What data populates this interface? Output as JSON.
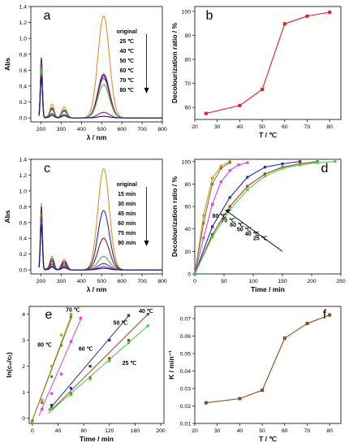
{
  "chart_data": [
    {
      "panel": "a",
      "type": "line",
      "xlabel": "λ / nm",
      "ylabel": "Abs",
      "xlim": [
        150,
        800
      ],
      "ylim": [
        -0.05,
        1.4
      ],
      "xticks": [
        200,
        300,
        400,
        500,
        600,
        700,
        800
      ],
      "yticks": [
        0.0,
        0.2,
        0.4,
        0.6,
        0.8,
        1.0,
        1.2,
        1.4
      ],
      "legend_labels": [
        "original",
        "25 ℃",
        "40 ℃",
        "50 ℃",
        "60 ℃",
        "70 ℃",
        "80 ℃"
      ],
      "series": [
        {
          "name": "original",
          "color": "#e0902a",
          "peak": 1.28,
          "start": 0.72,
          "band": 0.25
        },
        {
          "name": "25 ℃",
          "color": "#5a1a8c",
          "peak": 0.55,
          "start": 0.76,
          "band": 0.18
        },
        {
          "name": "40 ℃",
          "color": "#2a2a9a",
          "peak": 0.53,
          "start": 0.74,
          "band": 0.17
        },
        {
          "name": "50 ℃",
          "color": "#a01a40",
          "peak": 0.5,
          "start": 0.7,
          "band": 0.16
        },
        {
          "name": "60 ℃",
          "color": "#3ab83a",
          "peak": 0.42,
          "start": 0.65,
          "band": 0.15
        },
        {
          "name": "70 ℃",
          "color": "#9a1aa0",
          "peak": 0.07,
          "start": 0.55,
          "band": 0.08
        },
        {
          "name": "80 ℃",
          "color": "#1a1a6a",
          "peak": 0.02,
          "start": 0.52,
          "band": 0.05
        }
      ]
    },
    {
      "panel": "b",
      "type": "line",
      "xlabel": "T / ℃",
      "ylabel": "Decolourization ratio / %",
      "xlim": [
        20,
        85
      ],
      "ylim": [
        55,
        102
      ],
      "xticks": [
        20,
        30,
        40,
        50,
        60,
        70,
        80
      ],
      "yticks": [
        60,
        70,
        80,
        90,
        100
      ],
      "color": "#e02020",
      "x": [
        25,
        40,
        50,
        60,
        70,
        80
      ],
      "y": [
        57.5,
        60.8,
        67.5,
        94.8,
        98.0,
        99.6
      ]
    },
    {
      "panel": "c",
      "type": "line",
      "xlabel": "λ / nm",
      "ylabel": "Abs",
      "xlim": [
        150,
        800
      ],
      "ylim": [
        -0.05,
        1.4
      ],
      "xticks": [
        200,
        300,
        400,
        500,
        600,
        700,
        800
      ],
      "yticks": [
        0.0,
        0.2,
        0.4,
        0.6,
        0.8,
        1.0,
        1.2,
        1.4
      ],
      "legend_labels": [
        "original",
        "15 min",
        "30 min",
        "45 min",
        "60 min",
        "75 min",
        "90 min"
      ],
      "series": [
        {
          "name": "original",
          "color": "#e0902a",
          "peak": 1.28,
          "start": 0.85,
          "band": 0.25
        },
        {
          "name": "15 min",
          "color": "#2a2a9a",
          "peak": 0.75,
          "start": 0.8,
          "band": 0.2
        },
        {
          "name": "30 min",
          "color": "#8a1a2a",
          "peak": 0.4,
          "start": 0.75,
          "band": 0.16
        },
        {
          "name": "45 min",
          "color": "#3ab83a",
          "peak": 0.17,
          "start": 0.72,
          "band": 0.12
        },
        {
          "name": "60 min",
          "color": "#9a1aa0",
          "peak": 0.08,
          "start": 0.68,
          "band": 0.1
        },
        {
          "name": "75 min",
          "color": "#4a4ab0",
          "peak": 0.04,
          "start": 0.62,
          "band": 0.07
        },
        {
          "name": "90 min",
          "color": "#1a1a6a",
          "peak": 0.02,
          "start": 0.58,
          "band": 0.05
        }
      ]
    },
    {
      "panel": "d",
      "type": "line",
      "xlabel": "Time / min",
      "ylabel": "Decolourization ratio / %",
      "xlim": [
        0,
        250
      ],
      "ylim": [
        0,
        102
      ],
      "xticks": [
        0,
        50,
        100,
        150,
        200,
        250
      ],
      "yticks": [
        0,
        20,
        40,
        60,
        80,
        100
      ],
      "annotation_labels": [
        "80 ℃",
        "70 ℃",
        "60 ℃",
        "50 ℃",
        "40 ℃",
        "25 ℃"
      ],
      "series": [
        {
          "name": "80 ℃",
          "color": "#e0902a",
          "x": [
            0,
            15,
            30,
            45,
            60
          ],
          "y": [
            0,
            52,
            85,
            96,
            100
          ]
        },
        {
          "name": "70 ℃",
          "color": "#6a8a2a",
          "x": [
            0,
            15,
            30,
            45,
            60
          ],
          "y": [
            0,
            45,
            80,
            94,
            99
          ]
        },
        {
          "name": "60 ℃",
          "color": "#e040e0",
          "x": [
            0,
            15,
            30,
            45,
            60,
            75,
            90
          ],
          "y": [
            0,
            32,
            62,
            82,
            92,
            97,
            99
          ]
        },
        {
          "name": "50 ℃",
          "color": "#2a2ab0",
          "x": [
            0,
            30,
            60,
            90,
            120,
            150,
            180
          ],
          "y": [
            0,
            42,
            68,
            86,
            95,
            98,
            100
          ]
        },
        {
          "name": "40 ℃",
          "color": "#a0401a",
          "x": [
            0,
            30,
            60,
            90,
            120,
            150,
            180,
            210
          ],
          "y": [
            0,
            35,
            60,
            78,
            89,
            95,
            98,
            100
          ]
        },
        {
          "name": "25 ℃",
          "color": "#40d040",
          "x": [
            0,
            30,
            60,
            90,
            120,
            150,
            180,
            210,
            240
          ],
          "y": [
            0,
            33,
            57,
            75,
            87,
            94,
            97,
            99,
            100
          ]
        }
      ]
    },
    {
      "panel": "e",
      "type": "scatter",
      "xlabel": "Time / min",
      "ylabel": "ln(c₀/cₜ)",
      "xlim": [
        -5,
        205
      ],
      "ylim": [
        -0.2,
        4.3
      ],
      "xticks": [
        0,
        40,
        80,
        120,
        160,
        200
      ],
      "yticks": [
        0,
        1,
        2,
        3,
        4
      ],
      "series": [
        {
          "name": "80 ℃",
          "color": "#e0902a",
          "x": [
            0,
            15,
            30,
            45,
            60
          ],
          "y": [
            -0.1,
            0.7,
            2.0,
            3.2,
            4.0
          ]
        },
        {
          "name": "70 ℃",
          "color": "#6a8a2a",
          "x": [
            0,
            15,
            30,
            45,
            60
          ],
          "y": [
            -0.1,
            0.6,
            1.6,
            2.8,
            3.9
          ]
        },
        {
          "name": "60 ℃",
          "color": "#e040e0",
          "x": [
            15,
            30,
            45,
            60,
            75
          ],
          "y": [
            0.35,
            0.95,
            1.7,
            2.95,
            3.85
          ]
        },
        {
          "name": "50 ℃",
          "color": "#2a2ab0",
          "x": [
            30,
            60,
            90,
            120,
            150
          ],
          "y": [
            0.5,
            1.15,
            2.0,
            3.0,
            3.95
          ]
        },
        {
          "name": "40 ℃",
          "color": "#a0401a",
          "x": [
            30,
            60,
            90,
            120,
            150,
            180
          ],
          "y": [
            0.4,
            0.95,
            1.55,
            2.3,
            3.0,
            4.0
          ]
        },
        {
          "name": "25 ℃",
          "color": "#40d040",
          "x": [
            30,
            60,
            90,
            120,
            150,
            180
          ],
          "y": [
            0.35,
            0.9,
            1.5,
            2.2,
            2.9,
            3.55
          ]
        }
      ],
      "fit_lines": [
        {
          "color": "#e0902a",
          "x": [
            -2,
            62
          ],
          "y": [
            -0.2,
            4.05
          ]
        },
        {
          "color": "#6a8a2a",
          "x": [
            -2,
            62
          ],
          "y": [
            -0.2,
            3.95
          ]
        },
        {
          "color": "#e040e0",
          "x": [
            10,
            77
          ],
          "y": [
            0.1,
            3.9
          ]
        },
        {
          "color": "#2a2ab0",
          "x": [
            25,
            152
          ],
          "y": [
            0.3,
            4.0
          ]
        },
        {
          "color": "#a0401a",
          "x": [
            25,
            182
          ],
          "y": [
            0.2,
            4.05
          ]
        },
        {
          "color": "#40d040",
          "x": [
            25,
            182
          ],
          "y": [
            0.2,
            3.6
          ]
        }
      ]
    },
    {
      "panel": "f",
      "type": "line",
      "xlabel": "T / ℃",
      "ylabel": "K / min⁻¹",
      "xlim": [
        20,
        85
      ],
      "ylim": [
        0.01,
        0.077
      ],
      "xticks": [
        20,
        30,
        40,
        50,
        60,
        70,
        80
      ],
      "yticks": [
        0.01,
        0.02,
        0.03,
        0.04,
        0.05,
        0.06,
        0.07
      ],
      "color": "#8a4a1a",
      "x": [
        25,
        40,
        50,
        60,
        70,
        80
      ],
      "y": [
        0.0218,
        0.0242,
        0.029,
        0.0588,
        0.0672,
        0.0721
      ]
    }
  ]
}
